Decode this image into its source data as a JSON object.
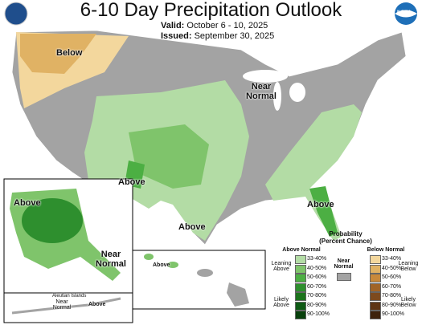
{
  "header": {
    "title": "6-10 Day Precipitation Outlook",
    "valid_label": "Valid:",
    "valid": "October 6 - 10, 2025",
    "issued_label": "Issued:",
    "issued": "September 30, 2025",
    "noaa": "NOAA"
  },
  "map_labels": [
    "Below",
    "Near Normal",
    "Above",
    "Above",
    "Above",
    "Above",
    "Near Normal",
    "Above",
    "Near Normal",
    "Above",
    "Aleutian Islands"
  ],
  "legend": {
    "title": "Probability",
    "subtitle": "(Percent Chance)",
    "above_header": "Above Normal",
    "below_header": "Below Normal",
    "near": "Near Normal",
    "near_color": "#a3a3a3",
    "leaning_above": "Leaning Above",
    "likely_above": "Likely Above",
    "leaning_below": "Leaning Below",
    "likely_below": "Likely Below",
    "bins": [
      "33-40%",
      "40-50%",
      "50-60%",
      "60-70%",
      "70-80%",
      "80-90%",
      "90-100%"
    ],
    "above_colors": [
      "#b3dca5",
      "#7fc46b",
      "#4caf43",
      "#2e8f2e",
      "#1c741c",
      "#0e5a14",
      "#08400c"
    ],
    "below_colors": [
      "#f3d79d",
      "#e0b264",
      "#c8893b",
      "#a06428",
      "#7d4a1e",
      "#5e3515",
      "#3e220c"
    ]
  }
}
